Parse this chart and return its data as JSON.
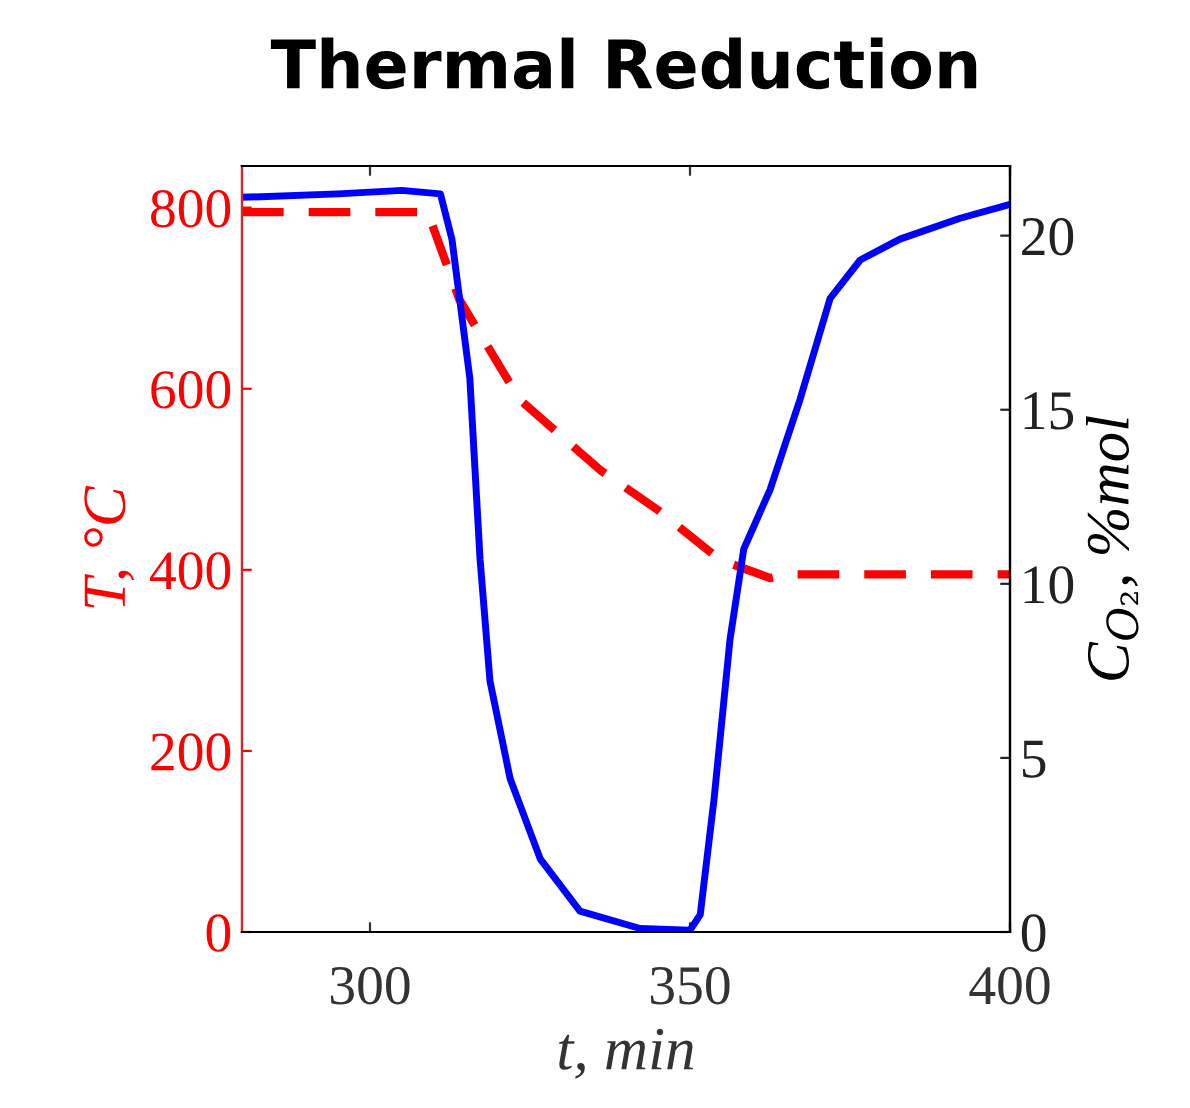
{
  "chart_data": {
    "type": "line",
    "title": "Thermal Reduction",
    "xlabel": "t, min",
    "ylabel": "T, °C",
    "y2label": "C$_{O₂}$, %mol",
    "xlim": [
      280,
      400
    ],
    "xticks": [
      300,
      350,
      400
    ],
    "ylim": [
      0,
      846
    ],
    "yticks": [
      0,
      200,
      400,
      600,
      800
    ],
    "y2lim": [
      0,
      22
    ],
    "y2ticks": [
      0,
      5,
      10,
      15,
      20
    ],
    "grid": false,
    "legend": false,
    "series": [
      {
        "color": "#ff0000",
        "line_style": "dashed",
        "x": [
          280,
          309,
          314,
          323.4,
          336,
          345,
          354.7,
          362.5,
          365,
          400
        ],
        "values": [
          795,
          795,
          698,
          588,
          510,
          466,
          411,
          391,
          395,
          395
        ]
      },
      {
        "color": "#0000ff",
        "line_style": "solid",
        "axis": "y2",
        "x": [
          280,
          295,
          305,
          311,
          312.8,
          315.6,
          317.2,
          318.75,
          321.9,
          326.6,
          332.8,
          342.2,
          350,
          351.6,
          353.75,
          356.25,
          358.4,
          362.5,
          367.2,
          371.9,
          376.6,
          382.8,
          392.2,
          400
        ],
        "values": [
          21.1,
          21.2,
          21.3,
          21.2,
          19.9,
          15.9,
          10.7,
          7.2,
          4.4,
          2.1,
          0.6,
          0.1,
          0.05,
          0.5,
          3.8,
          8.4,
          11,
          12.7,
          15.3,
          18.2,
          19.3,
          19.9,
          20.5,
          20.9
        ]
      }
    ]
  }
}
